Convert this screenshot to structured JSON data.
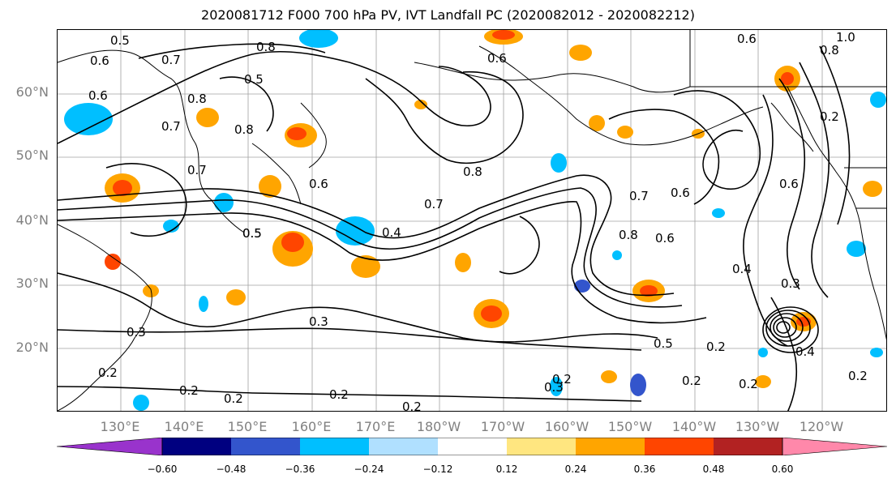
{
  "title": "2020081712 F000 700 hPa PV, IVT Landfall PC (2020082012 - 2020082212)",
  "lat_labels": [
    "60°N",
    "50°N",
    "40°N",
    "30°N",
    "20°N"
  ],
  "lon_labels": [
    "130°E",
    "140°E",
    "150°E",
    "160°E",
    "170°E",
    "180°W",
    "170°W",
    "160°W",
    "150°W",
    "140°W",
    "130°W",
    "120°W"
  ],
  "contour_labels": [
    "0.5",
    "0.6",
    "0.7",
    "0.8",
    "0.6",
    "0.8",
    "0.7",
    "0.5",
    "0.7",
    "0.6",
    "0.5",
    "0.8",
    "0.6",
    "1.0",
    "0.8",
    "0.6",
    "0.2",
    "0.8",
    "0.7",
    "0.6",
    "0.7",
    "0.8",
    "0.6",
    "0.4",
    "0.5",
    "0.6",
    "0.4",
    "0.3",
    "0.3",
    "0.2",
    "0.2",
    "0.2",
    "0.2",
    "0.3",
    "0.2",
    "0.2",
    "0.5",
    "0.2",
    "0.2",
    "0.3",
    "0.4",
    "0.2",
    "0.2"
  ],
  "colorbar": {
    "tick_labels": [
      "−0.60",
      "−0.48",
      "−0.36",
      "−0.24",
      "−0.12",
      "0.12",
      "0.24",
      "0.36",
      "0.48",
      "0.60"
    ],
    "colors": [
      "#9933cc",
      "#000080",
      "#3355cc",
      "#00bfff",
      "#b0e0ff",
      "#ffffff",
      "#ffe680",
      "#ffa500",
      "#ff4500",
      "#b22222",
      "#ff88aa"
    ]
  },
  "map_colors": {
    "positive": [
      "#ffe680",
      "#ffa500",
      "#ff4500"
    ],
    "negative": [
      "#b0e0ff",
      "#00bfff",
      "#3355cc"
    ]
  }
}
